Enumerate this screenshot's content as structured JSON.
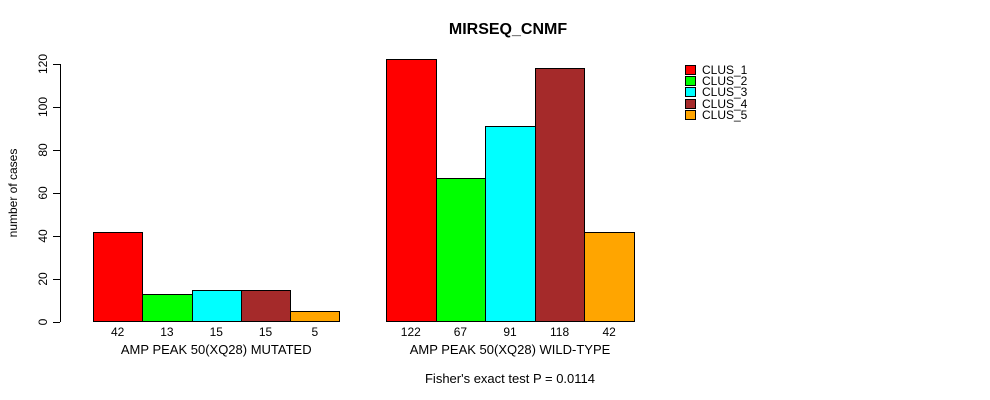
{
  "chart_data": {
    "type": "bar",
    "title": "MIRSEQ_CNMF",
    "ylabel": "number of cases",
    "ylim": [
      0,
      120
    ],
    "yticks": [
      0,
      20,
      40,
      60,
      80,
      100,
      120
    ],
    "grid": false,
    "legend_position": "right-outside-top",
    "categories": [
      "AMP PEAK 50(XQ28) MUTATED",
      "AMP PEAK 50(XQ28) WILD-TYPE"
    ],
    "series": [
      {
        "name": "CLUS_1",
        "color": "#FF0000",
        "values": [
          42,
          122
        ]
      },
      {
        "name": "CLUS_2",
        "color": "#00FF00",
        "values": [
          13,
          67
        ]
      },
      {
        "name": "CLUS_3",
        "color": "#00FFFF",
        "values": [
          15,
          91
        ]
      },
      {
        "name": "CLUS_4",
        "color": "#A52A2A",
        "values": [
          15,
          118
        ]
      },
      {
        "name": "CLUS_5",
        "color": "#FFA500",
        "values": [
          5,
          42
        ]
      }
    ],
    "bar_value_labels": [
      [
        42,
        13,
        15,
        15,
        5
      ],
      [
        122,
        67,
        91,
        118,
        42
      ]
    ],
    "annotation": "Fisher's exact test P = 0.0114"
  }
}
